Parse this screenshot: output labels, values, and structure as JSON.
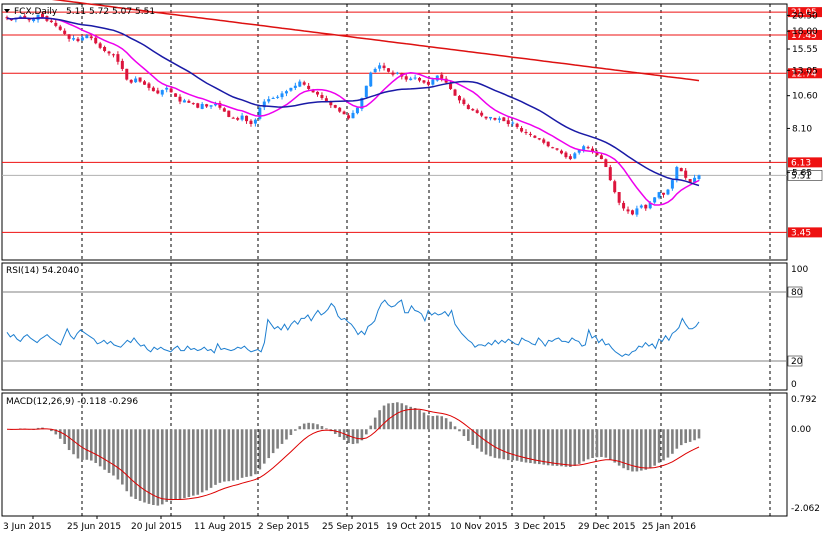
{
  "symbol_title": "FCX,Daily",
  "ohlc": {
    "open": "5.11",
    "high": "5.72",
    "low": "5.07",
    "close": "5.51"
  },
  "colors": {
    "up": "#1E90FF",
    "down": "#DC143C",
    "ma_fast": "#EE00EE",
    "ma_mid": "#1A1AA6",
    "ma_slow": "#DD1111",
    "level_line": "#EE1111",
    "rsi_line": "#1E7FD0",
    "macd_hist": "#808080",
    "macd_signal": "#DD0000",
    "grid": "#000000"
  },
  "price_axis": {
    "ticks": [
      "20.50",
      "18.00",
      "15.55",
      "13.05",
      "10.60",
      "8.10",
      "5.65"
    ],
    "min": 2.75,
    "max": 22.5,
    "scale": "log"
  },
  "price_levels": [
    {
      "value": 21.05,
      "label": "21.05"
    },
    {
      "value": 17.45,
      "label": "17.45"
    },
    {
      "value": 12.74,
      "label": "12.74"
    },
    {
      "value": 6.13,
      "label": "6.13"
    },
    {
      "value": 3.45,
      "label": "3.45"
    }
  ],
  "current_price": {
    "value": 5.51,
    "label": "5.51"
  },
  "rsi": {
    "title": "RSI(14) 54.2040",
    "ticks": [
      "100",
      "80",
      "20",
      "0"
    ],
    "levels": [
      80,
      20
    ],
    "values": [
      45,
      41,
      43,
      39,
      37,
      41,
      43,
      40,
      38,
      36,
      39,
      41,
      43,
      40,
      38,
      36,
      34,
      41,
      48,
      42,
      39,
      44,
      47,
      45,
      43,
      41,
      39,
      35,
      36,
      38,
      35,
      37,
      34,
      33,
      32,
      35,
      38,
      36,
      40,
      36,
      33,
      34,
      30,
      28,
      32,
      30,
      32,
      30,
      29,
      28,
      31,
      33,
      29,
      29,
      33,
      30,
      31,
      29,
      30,
      32,
      29,
      30,
      27,
      35,
      30,
      31,
      30,
      29,
      30,
      32,
      31,
      33,
      30,
      28,
      29,
      30,
      28,
      36,
      56,
      52,
      48,
      50,
      47,
      52,
      47,
      52,
      55,
      52,
      57,
      57,
      60,
      55,
      60,
      64,
      60,
      62,
      65,
      70,
      67,
      59,
      56,
      57,
      54,
      52,
      48,
      43,
      46,
      43,
      50,
      52,
      55,
      64,
      70,
      73,
      69,
      67,
      68,
      71,
      73,
      62,
      62,
      68,
      64,
      63,
      61,
      55,
      64,
      60,
      62,
      60,
      61,
      63,
      59,
      64,
      52,
      48,
      44,
      41,
      38,
      36,
      32,
      34,
      34,
      33,
      36,
      34,
      38,
      35,
      38,
      36,
      39,
      37,
      35,
      34,
      40,
      38,
      37,
      35,
      34,
      40,
      37,
      33,
      38,
      37,
      39,
      40,
      37,
      37,
      36,
      40,
      38,
      37,
      33,
      34,
      47,
      40,
      42,
      36,
      39,
      34,
      35,
      31,
      28,
      26,
      24,
      26,
      25,
      28,
      29,
      33,
      32,
      36,
      33,
      35,
      31,
      39,
      37,
      42,
      38,
      44,
      46,
      49,
      57,
      52,
      48,
      48,
      50,
      54
    ]
  },
  "macd": {
    "title": "MACD(12,26,9) -0.118 -0.296",
    "ticks": [
      "0.792",
      "0.00",
      "-2.062"
    ],
    "min": -2.062,
    "max": 0.792
  },
  "x_axis": {
    "labels": [
      "3 Jun 2015",
      "25 Jun 2015",
      "20 Jul 2015",
      "11 Aug 2015",
      "2 Sep 2015",
      "25 Sep 2015",
      "19 Oct 2015",
      "10 Nov 2015",
      "3 Dec 2015",
      "29 Dec 2015",
      "25 Jan 2016"
    ]
  },
  "chart_data": {
    "type": "candlestick",
    "title": "FCX,Daily",
    "x": [
      "3 Jun 2015",
      "25 Jun 2015",
      "20 Jul 2015",
      "11 Aug 2015",
      "2 Sep 2015",
      "25 Sep 2015",
      "19 Oct 2015",
      "10 Nov 2015",
      "3 Dec 2015",
      "29 Dec 2015",
      "25 Jan 2016"
    ],
    "close_path": [
      20.0,
      19.8,
      20.1,
      20.3,
      20.0,
      19.7,
      19.9,
      20.6,
      20.2,
      19.6,
      19.4,
      18.8,
      18.2,
      17.6,
      16.9,
      17.0,
      16.6,
      17.1,
      17.4,
      17.0,
      16.3,
      15.7,
      15.3,
      15.0,
      14.8,
      14.0,
      13.2,
      12.1,
      11.8,
      12.2,
      11.9,
      11.6,
      11.3,
      11.0,
      10.8,
      11.1,
      11.3,
      10.9,
      10.5,
      10.1,
      10.2,
      10.0,
      9.9,
      9.6,
      9.9,
      9.7,
      9.8,
      9.9,
      9.6,
      9.3,
      8.9,
      8.8,
      8.7,
      9.0,
      8.6,
      8.4,
      8.7,
      9.6,
      10.1,
      10.3,
      10.4,
      10.5,
      10.8,
      11.0,
      11.3,
      11.5,
      11.9,
      11.6,
      11.2,
      10.9,
      10.7,
      10.4,
      10.1,
      9.8,
      9.6,
      9.3,
      9.1,
      8.8,
      9.2,
      9.6,
      10.4,
      11.5,
      12.8,
      13.2,
      13.6,
      13.3,
      12.9,
      12.6,
      12.8,
      12.4,
      12.1,
      12.2,
      12.3,
      12.0,
      11.8,
      11.6,
      12.1,
      12.5,
      12.2,
      11.8,
      11.2,
      10.6,
      10.2,
      9.9,
      9.5,
      9.4,
      9.2,
      9.0,
      8.8,
      8.9,
      8.7,
      8.8,
      8.6,
      8.4,
      8.5,
      8.2,
      7.9,
      7.8,
      7.7,
      7.5,
      7.4,
      7.2,
      7.0,
      6.9,
      6.8,
      6.6,
      6.4,
      6.3,
      6.6,
      6.8,
      7.0,
      6.9,
      6.7,
      6.5,
      6.3,
      5.9,
      5.3,
      4.8,
      4.4,
      4.2,
      4.1,
      4.0,
      4.2,
      4.3,
      4.2,
      4.4,
      4.6,
      4.8,
      4.7,
      4.9,
      5.3,
      5.9,
      5.7,
      5.4,
      5.2,
      5.4,
      5.51
    ],
    "indicators": [
      "MA fast (magenta)",
      "MA mid (navy)",
      "MA slow (red)",
      "RSI(14)",
      "MACD(12,26,9)"
    ]
  }
}
